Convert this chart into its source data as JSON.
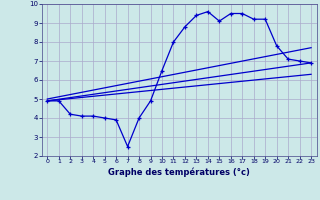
{
  "xlabel": "Graphe des températures (°c)",
  "background_color": "#cce8e8",
  "grid_color": "#aaaacc",
  "line_color": "#0000cc",
  "tick_color": "#000066",
  "spine_color": "#444488",
  "xlim": [
    -0.5,
    23.5
  ],
  "ylim": [
    2,
    10
  ],
  "xticks": [
    0,
    1,
    2,
    3,
    4,
    5,
    6,
    7,
    8,
    9,
    10,
    11,
    12,
    13,
    14,
    15,
    16,
    17,
    18,
    19,
    20,
    21,
    22,
    23
  ],
  "yticks": [
    2,
    3,
    4,
    5,
    6,
    7,
    8,
    9,
    10
  ],
  "series1_x": [
    0,
    1,
    2,
    3,
    4,
    5,
    6,
    7,
    8,
    9,
    10,
    11,
    12,
    13,
    14,
    15,
    16,
    17,
    18,
    19,
    20,
    21,
    22,
    23
  ],
  "series1_y": [
    4.9,
    4.9,
    4.2,
    4.1,
    4.1,
    4.0,
    3.9,
    2.5,
    4.0,
    4.9,
    6.5,
    8.0,
    8.8,
    9.4,
    9.6,
    9.1,
    9.5,
    9.5,
    9.2,
    9.2,
    7.8,
    7.1,
    7.0,
    6.9
  ],
  "series2_x": [
    0,
    23
  ],
  "series2_y": [
    4.9,
    6.9
  ],
  "series3_x": [
    0,
    23
  ],
  "series3_y": [
    5.0,
    7.7
  ],
  "series4_x": [
    0,
    23
  ],
  "series4_y": [
    4.9,
    6.3
  ]
}
